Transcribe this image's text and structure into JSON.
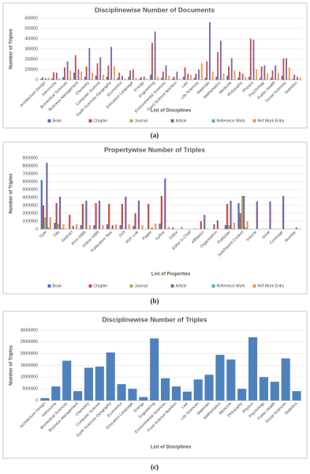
{
  "chart_data": [
    {
      "type": "bar",
      "title": "Disciplinewise Number of Documents",
      "caption": "(a)",
      "x_label": "List of Disciplines",
      "y_label": "Number of Triples",
      "categories": [
        "Architecture Design",
        "Astronomy",
        "Biomedical Sciences",
        "Business Management",
        "Chemistry",
        "Computer Science",
        "Earth Sciences Geography",
        "Economics",
        "Education Language",
        "Energy",
        "Engineering",
        "Environmental Sciences",
        "Food Science Nutrition",
        "Law",
        "Life Sciences",
        "Materials",
        "Mathematics",
        "Medicine",
        "Philosophy",
        "Physics",
        "Psychology",
        "Public Health",
        "Social Sciences",
        "Statistics"
      ],
      "series": [
        {
          "name": "Book",
          "color": "#4472c4",
          "values": [
            10000,
            15000,
            25000,
            70000,
            30000,
            40000,
            30000,
            20000,
            30000,
            10000,
            50000,
            20000,
            10000,
            30000,
            20000,
            20000,
            30000,
            40000,
            20000,
            30000,
            20000,
            20000,
            40000,
            10000
          ]
        },
        {
          "name": "Chapter",
          "color": "#c0504d",
          "values": [
            25000,
            75000,
            120000,
            240000,
            130000,
            160000,
            140000,
            70000,
            90000,
            25000,
            360000,
            80000,
            30000,
            120000,
            60000,
            180000,
            270000,
            130000,
            80000,
            400000,
            130000,
            90000,
            210000,
            50000
          ]
        },
        {
          "name": "Journal",
          "color": "#9bbb59",
          "values": [
            1000,
            2000,
            3000,
            5000,
            5000,
            3000,
            4000,
            2000,
            3000,
            1000,
            5000,
            3000,
            1000,
            2000,
            3000,
            3000,
            3000,
            5000,
            2000,
            4000,
            3000,
            3000,
            4000,
            1000
          ]
        },
        {
          "name": "Article",
          "color": "#8064a2",
          "values": [
            15000,
            70000,
            180000,
            100000,
            310000,
            220000,
            320000,
            40000,
            100000,
            30000,
            470000,
            140000,
            80000,
            60000,
            100000,
            560000,
            380000,
            210000,
            60000,
            390000,
            140000,
            140000,
            210000,
            30000
          ]
        },
        {
          "name": "Reference Work",
          "color": "#4bacc6",
          "values": [
            1000,
            1000,
            2000,
            3000,
            3000,
            3000,
            3000,
            1000,
            2000,
            1000,
            3000,
            2000,
            1000,
            2000,
            2000,
            2000,
            2000,
            3000,
            1000,
            3000,
            2000,
            2000,
            3000,
            1000
          ]
        },
        {
          "name": "Ref Work Entry",
          "color": "#f79646",
          "values": [
            20000,
            15000,
            90000,
            80000,
            70000,
            50000,
            130000,
            10000,
            20000,
            10000,
            30000,
            40000,
            10000,
            50000,
            160000,
            80000,
            60000,
            90000,
            30000,
            100000,
            60000,
            70000,
            120000,
            20000
          ]
        }
      ],
      "ylim": [
        0,
        600000
      ],
      "yticks": [
        0,
        100000,
        200000,
        300000,
        400000,
        500000,
        600000
      ]
    },
    {
      "type": "bar",
      "title": "Propertywise Number of Triples",
      "caption": "(b)",
      "x_label": "List of Properties",
      "y_label": "Number of Triples",
      "categories": [
        "Type",
        "Title",
        "Abstract",
        "Print ISBN",
        "Online ISBN",
        "Publication Year",
        "DOI",
        "PDF Link",
        "Pages",
        "Author",
        "Editor",
        "Editor In Chief",
        "Affiliation",
        "Organisation",
        "Publisher",
        "Sub/Parent Content",
        "Volume",
        "Issue",
        "Coverage",
        "Number"
      ],
      "series": [
        {
          "name": "Book",
          "color": "#4472c4",
          "values": [
            6200000,
            800000,
            0,
            500000,
            500000,
            600000,
            500000,
            400000,
            0,
            700000,
            200000,
            0,
            0,
            0,
            500000,
            3300000,
            0,
            0,
            0,
            0
          ]
        },
        {
          "name": "Chapter",
          "color": "#c0504d",
          "values": [
            3000000,
            3300000,
            1800000,
            3200000,
            3300000,
            3200000,
            3200000,
            2000000,
            3200000,
            4200000,
            0,
            0,
            1000000,
            600000,
            3200000,
            2000000,
            0,
            0,
            0,
            0
          ]
        },
        {
          "name": "Journal",
          "color": "#9bbb59",
          "values": [
            1500000,
            700000,
            0,
            0,
            0,
            0,
            0,
            0,
            0,
            0,
            0,
            0,
            0,
            0,
            500000,
            4200000,
            0,
            0,
            0,
            0
          ]
        },
        {
          "name": "Article",
          "color": "#8064a2",
          "values": [
            8400000,
            4100000,
            400000,
            3600000,
            3600000,
            500000,
            4100000,
            3600000,
            200000,
            6400000,
            0,
            0,
            1800000,
            1100000,
            3600000,
            4200000,
            3500000,
            3500000,
            4200000,
            200000
          ]
        },
        {
          "name": "Reference Work",
          "color": "#4bacc6",
          "values": [
            200000,
            100000,
            0,
            0,
            0,
            0,
            0,
            0,
            0,
            0,
            0,
            0,
            0,
            0,
            100000,
            200000,
            0,
            0,
            0,
            0
          ]
        },
        {
          "name": "Ref Work Entry",
          "color": "#f79646",
          "values": [
            1500000,
            600000,
            600000,
            500000,
            500000,
            600000,
            600000,
            500000,
            700000,
            300000,
            300000,
            100000,
            0,
            0,
            800000,
            1000000,
            0,
            0,
            0,
            0
          ]
        }
      ],
      "ylim": [
        0,
        9000000
      ],
      "yticks": [
        0,
        1000000,
        2000000,
        3000000,
        4000000,
        5000000,
        6000000,
        7000000,
        8000000,
        9000000
      ]
    },
    {
      "type": "bar",
      "title": "Disciplinewise Number of Triples",
      "caption": "(c)",
      "x_label": "List of Disciplines",
      "y_label": "Number of Triples",
      "categories": [
        "Architecture Design",
        "Astronomy",
        "Biomedical Sciences",
        "Business Management",
        "Chemistry",
        "Computer Science",
        "Earth Sciences Geography",
        "Economics",
        "Education Language",
        "Energy",
        "Engineering",
        "Environmental Sciences",
        "Food Science Nutrition",
        "Law",
        "Life Sciences",
        "Materials",
        "Mathematics",
        "Medicine",
        "Philosophy",
        "Physics",
        "Psychology",
        "Public Health",
        "Social Sciences",
        "Statistics"
      ],
      "color": "#4f81bd",
      "values": [
        1000000,
        6000000,
        17000000,
        4000000,
        14000000,
        14500000,
        20500000,
        7000000,
        5000000,
        1500000,
        26500000,
        9500000,
        6000000,
        3800000,
        9000000,
        11000000,
        19500000,
        17500000,
        5000000,
        27000000,
        10000000,
        8000000,
        18000000,
        4000000
      ],
      "ylim": [
        0,
        30000000
      ],
      "yticks": [
        0,
        5000000,
        10000000,
        15000000,
        20000000,
        25000000,
        30000000
      ]
    }
  ]
}
